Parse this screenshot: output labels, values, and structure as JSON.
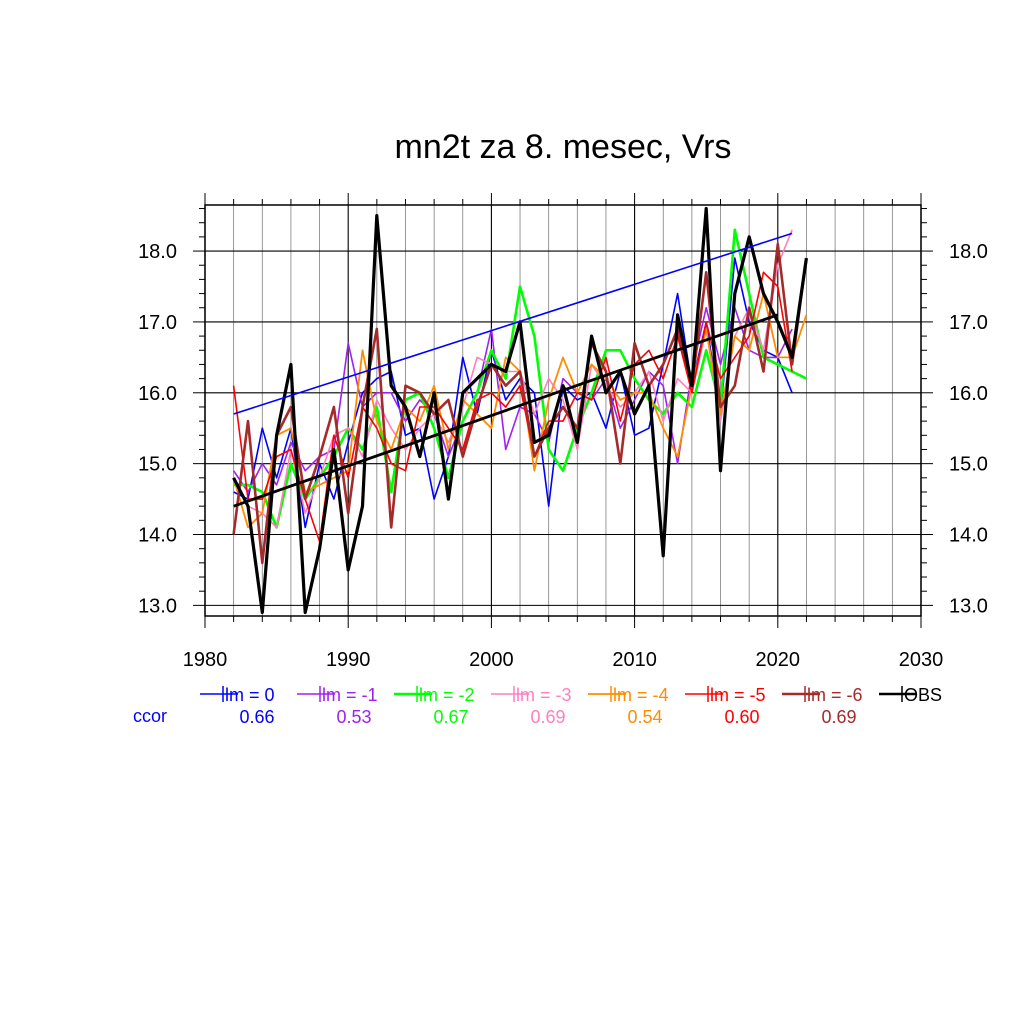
{
  "chart_data": {
    "type": "line",
    "title": "mn2t za 8. mesec, Vrs",
    "xlabel": "",
    "ylabel": "",
    "xlim": [
      1980,
      2030
    ],
    "ylim": [
      12.85,
      18.65
    ],
    "x_ticks": [
      "1980",
      "1990",
      "2000",
      "2010",
      "2020",
      "2030"
    ],
    "y_ticks": [
      "13.0",
      "14.0",
      "15.0",
      "16.0",
      "17.0",
      "18.0"
    ],
    "grid": true,
    "legend_position": "bottom",
    "ccor_label": "ccor",
    "ccor_color": "#0000ff",
    "series": [
      {
        "name": "lm = 0",
        "color": "#0000ff",
        "width": 1.6,
        "ccor": "0.66",
        "x": [
          1982,
          1983,
          1984,
          1985,
          1986,
          1987,
          1988,
          1989,
          1990,
          1991,
          1992,
          1993,
          1994,
          1995,
          1996,
          1997,
          1998,
          1999,
          2000,
          2001,
          2002,
          2003,
          2004,
          2005,
          2006,
          2007,
          2008,
          2009,
          2010,
          2011,
          2012,
          2013,
          2014,
          2015,
          2016,
          2017,
          2018,
          2019,
          2020,
          2021
        ],
        "values": [
          14.6,
          14.5,
          15.5,
          14.8,
          15.5,
          14.1,
          15.0,
          14.5,
          15.3,
          16.0,
          16.2,
          16.3,
          15.4,
          15.5,
          14.5,
          15.1,
          16.5,
          15.7,
          16.6,
          15.9,
          16.2,
          16.0,
          14.4,
          16.1,
          15.9,
          16.0,
          15.5,
          16.3,
          15.4,
          15.5,
          16.4,
          17.4,
          16.1,
          17.0,
          15.7,
          17.9,
          17.0,
          16.6,
          16.5,
          16.0
        ]
      },
      {
        "name": "lm = -1",
        "color": "#a020f0",
        "width": 1.6,
        "ccor": "0.53",
        "x": [
          1982,
          1983,
          1984,
          1985,
          1986,
          1987,
          1988,
          1989,
          1990,
          1991,
          1992,
          1993,
          1994,
          1995,
          1996,
          1997,
          1998,
          1999,
          2000,
          2001,
          2002,
          2003,
          2004,
          2005,
          2006,
          2007,
          2008,
          2009,
          2010,
          2011,
          2012,
          2013,
          2014,
          2015,
          2016,
          2017,
          2018,
          2019,
          2020,
          2021
        ],
        "values": [
          14.9,
          14.6,
          15.0,
          14.7,
          15.3,
          14.9,
          15.1,
          15.2,
          16.7,
          15.8,
          16.0,
          16.0,
          15.6,
          15.9,
          15.7,
          15.1,
          15.6,
          16.0,
          16.9,
          15.2,
          15.8,
          15.7,
          15.3,
          16.2,
          16.0,
          15.9,
          16.2,
          15.5,
          15.9,
          16.3,
          16.1,
          15.0,
          16.3,
          17.2,
          16.4,
          17.2,
          16.6,
          16.5,
          16.5,
          16.9
        ]
      },
      {
        "name": "lm = -2",
        "color": "#00ff00",
        "width": 2.6,
        "ccor": "0.67",
        "x": [
          1982,
          1983,
          1984,
          1985,
          1986,
          1987,
          1988,
          1989,
          1990,
          1991,
          1992,
          1993,
          1994,
          1995,
          1996,
          1997,
          1998,
          1999,
          2000,
          2001,
          2002,
          2003,
          2004,
          2005,
          2006,
          2007,
          2008,
          2009,
          2010,
          2011,
          2012,
          2013,
          2014,
          2015,
          2016,
          2017,
          2018,
          2019,
          2020,
          2021,
          2022
        ],
        "values": [
          14.7,
          14.7,
          14.6,
          14.1,
          15.0,
          14.5,
          14.8,
          15.1,
          15.5,
          15.2,
          15.8,
          14.6,
          15.9,
          16.0,
          15.5,
          14.8,
          15.6,
          16.0,
          16.6,
          16.2,
          17.5,
          16.8,
          15.2,
          14.9,
          15.5,
          16.0,
          16.6,
          16.6,
          16.2,
          15.9,
          15.7,
          16.0,
          15.8,
          16.6,
          15.8,
          18.3,
          17.4,
          16.5,
          16.4,
          16.3,
          16.2
        ]
      },
      {
        "name": "lm = -3",
        "color": "#ff7fbf",
        "width": 1.6,
        "ccor": "0.69",
        "x": [
          1982,
          1983,
          1984,
          1985,
          1986,
          1987,
          1988,
          1989,
          1990,
          1991,
          1992,
          1993,
          1994,
          1995,
          1996,
          1997,
          1998,
          1999,
          2000,
          2001,
          2002,
          2003,
          2004,
          2005,
          2006,
          2007,
          2008,
          2009,
          2010,
          2011,
          2012,
          2013,
          2014,
          2015,
          2016,
          2017,
          2018,
          2019,
          2020,
          2021
        ],
        "values": [
          14.8,
          14.4,
          14.3,
          14.1,
          15.2,
          14.3,
          14.8,
          15.4,
          15.5,
          15.1,
          15.9,
          15.5,
          15.2,
          15.5,
          15.7,
          15.3,
          15.8,
          16.5,
          16.4,
          16.3,
          16.3,
          15.7,
          16.2,
          15.9,
          15.2,
          16.4,
          16.1,
          15.8,
          16.0,
          16.3,
          15.6,
          16.2,
          16.0,
          16.9,
          15.6,
          16.8,
          17.2,
          16.6,
          17.8,
          18.3
        ]
      },
      {
        "name": "lm = -4",
        "color": "#ff8c00",
        "width": 1.8,
        "ccor": "0.54",
        "x": [
          1982,
          1983,
          1984,
          1985,
          1986,
          1987,
          1988,
          1989,
          1990,
          1991,
          1992,
          1993,
          1994,
          1995,
          1996,
          1997,
          1998,
          1999,
          2000,
          2001,
          2002,
          2003,
          2004,
          2005,
          2006,
          2007,
          2008,
          2009,
          2010,
          2011,
          2012,
          2013,
          2014,
          2015,
          2016,
          2017,
          2018,
          2019,
          2020,
          2021,
          2022
        ],
        "values": [
          14.8,
          14.1,
          14.3,
          15.4,
          15.5,
          14.6,
          14.7,
          14.8,
          14.9,
          16.6,
          15.6,
          15.2,
          15.8,
          15.6,
          16.1,
          15.2,
          15.9,
          15.7,
          15.5,
          16.5,
          16.3,
          14.9,
          15.9,
          16.5,
          16.0,
          16.4,
          16.2,
          15.9,
          16.0,
          16.0,
          15.5,
          15.1,
          16.1,
          16.9,
          15.7,
          16.8,
          16.6,
          17.4,
          16.5,
          16.5,
          17.1
        ]
      },
      {
        "name": "lm = -5",
        "color": "#ff0000",
        "width": 1.6,
        "ccor": "0.60",
        "x": [
          1982,
          1983,
          1984,
          1985,
          1986,
          1987,
          1988,
          1989,
          1990,
          1991,
          1992,
          1993,
          1994,
          1995,
          1996,
          1997,
          1998,
          1999,
          2000,
          2001,
          2002,
          2003,
          2004,
          2005,
          2006,
          2007,
          2008,
          2009,
          2010,
          2011,
          2012,
          2013,
          2014,
          2015,
          2016,
          2017,
          2018,
          2019,
          2020,
          2021
        ],
        "values": [
          16.1,
          14.5,
          14.5,
          15.1,
          15.2,
          14.5,
          13.9,
          15.4,
          14.8,
          15.8,
          15.5,
          15.0,
          14.9,
          15.8,
          15.8,
          15.5,
          15.2,
          15.9,
          16.0,
          15.8,
          16.1,
          15.1,
          15.6,
          15.6,
          16.0,
          15.9,
          16.5,
          15.6,
          16.4,
          16.6,
          16.2,
          16.8,
          16.0,
          17.0,
          16.2,
          16.5,
          16.8,
          17.7,
          17.5,
          16.3
        ]
      },
      {
        "name": "lm = -6",
        "color": "#a52a2a",
        "width": 2.6,
        "ccor": "0.69",
        "x": [
          1982,
          1983,
          1984,
          1985,
          1986,
          1987,
          1988,
          1989,
          1990,
          1991,
          1992,
          1993,
          1994,
          1995,
          1996,
          1997,
          1998,
          1999,
          2000,
          2001,
          2002,
          2003,
          2004,
          2005,
          2006,
          2007,
          2008,
          2009,
          2010,
          2011,
          2012,
          2013,
          2014,
          2015,
          2016,
          2017,
          2018,
          2019,
          2020,
          2021,
          2022
        ],
        "values": [
          14.0,
          15.6,
          13.6,
          15.4,
          15.8,
          14.5,
          15.1,
          15.8,
          14.3,
          15.8,
          16.9,
          14.1,
          16.1,
          16.0,
          15.7,
          15.9,
          15.1,
          15.8,
          16.4,
          16.1,
          16.3,
          15.1,
          15.5,
          15.8,
          15.5,
          16.7,
          16.3,
          15.0,
          16.7,
          16.1,
          16.4,
          16.9,
          16.1,
          17.7,
          15.8,
          16.1,
          17.2,
          16.3,
          18.1,
          16.4,
          17.9
        ]
      },
      {
        "name": "OBS",
        "color": "#000000",
        "width": 3.2,
        "ccor": "",
        "x": [
          1982,
          1983,
          1984,
          1985,
          1986,
          1987,
          1988,
          1989,
          1990,
          1991,
          1992,
          1993,
          1994,
          1995,
          1996,
          1997,
          1998,
          1999,
          2000,
          2001,
          2002,
          2003,
          2004,
          2005,
          2006,
          2007,
          2008,
          2009,
          2010,
          2011,
          2012,
          2013,
          2014,
          2015,
          2016,
          2017,
          2018,
          2019,
          2020,
          2021,
          2022
        ],
        "values": [
          14.8,
          14.4,
          12.9,
          15.4,
          16.4,
          12.9,
          13.8,
          15.2,
          13.5,
          14.4,
          18.5,
          16.1,
          15.8,
          15.1,
          16.0,
          14.5,
          16.0,
          16.2,
          16.4,
          16.3,
          17.0,
          15.3,
          15.4,
          16.1,
          15.3,
          16.8,
          16.0,
          16.3,
          15.7,
          16.1,
          13.7,
          17.1,
          16.1,
          18.6,
          14.9,
          17.4,
          18.2,
          17.4,
          17.0,
          16.5,
          17.9
        ]
      }
    ],
    "trend_lines": [
      {
        "series": "lm = 0",
        "color": "#0000ff",
        "width": 1.6,
        "x": [
          1982,
          2021
        ],
        "values": [
          15.7,
          18.25
        ]
      },
      {
        "series": "OBS",
        "color": "#000000",
        "width": 2.8,
        "x": [
          1982,
          2020
        ],
        "values": [
          14.4,
          17.1
        ]
      }
    ]
  }
}
